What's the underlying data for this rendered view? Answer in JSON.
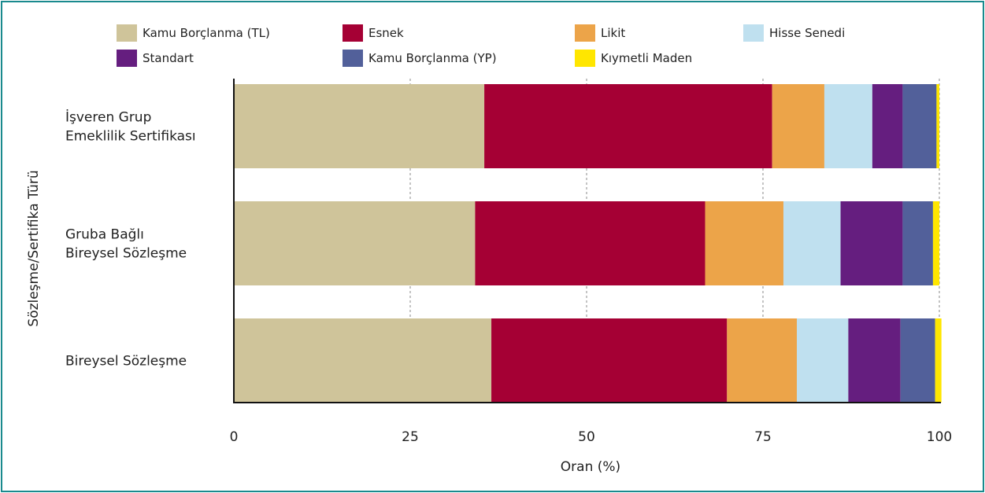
{
  "chart_data": {
    "type": "bar",
    "orientation": "horizontal",
    "stacked": true,
    "title": "",
    "xlabel": "Oran (%)",
    "ylabel": "Sözleşme/Sertifika Türü",
    "xlim": [
      0,
      100
    ],
    "xticks": [
      "0",
      "25",
      "50",
      "75",
      "100"
    ],
    "grid": "vertical dashed",
    "legend_position": "top",
    "categories": [
      [
        "İşveren Grup",
        "Emeklilik Sertifikası"
      ],
      [
        "Gruba Bağlı",
        "Bireysel Sözleşme"
      ],
      [
        "Bireysel Sözleşme"
      ]
    ],
    "series": [
      {
        "name": "Kamu Borçlanma (TL)",
        "color": "#cfc49a",
        "values": [
          35.5,
          34.2,
          36.5
        ]
      },
      {
        "name": "Esnek",
        "color": "#a50034",
        "values": [
          40.8,
          32.6,
          33.4
        ]
      },
      {
        "name": "Likit",
        "color": "#eca449",
        "values": [
          7.4,
          11.1,
          9.9
        ]
      },
      {
        "name": "Hisse Senedi",
        "color": "#bfe0ef",
        "values": [
          6.8,
          8.1,
          7.3
        ]
      },
      {
        "name": "Standart",
        "color": "#651e7f",
        "values": [
          4.3,
          8.8,
          7.4
        ]
      },
      {
        "name": "Kamu Borçlanma (YP)",
        "color": "#52609a",
        "values": [
          4.8,
          4.3,
          4.9
        ]
      },
      {
        "name": "Kıymetli Maden",
        "color": "#ffe600",
        "values": [
          0.4,
          0.9,
          0.9
        ]
      }
    ]
  }
}
